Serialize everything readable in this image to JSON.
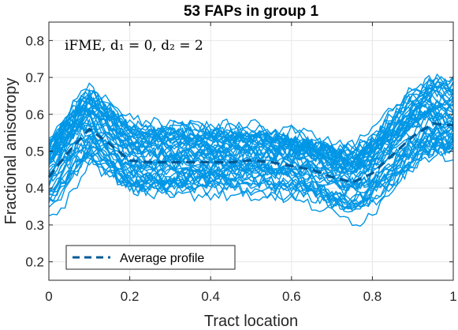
{
  "chart_data": {
    "type": "line",
    "title": "53 FAPs in group 1",
    "xlabel": "Tract location",
    "ylabel": "Fractional anisotropy",
    "xlim": [
      0,
      1
    ],
    "ylim": [
      0.15,
      0.85
    ],
    "xticks": [
      0,
      0.2,
      0.4,
      0.6,
      0.8,
      1
    ],
    "xtick_labels": [
      "0",
      "0.2",
      "0.4",
      "0.6",
      "0.8",
      "1"
    ],
    "yticks": [
      0.2,
      0.3,
      0.4,
      0.5,
      0.6,
      0.7,
      0.8
    ],
    "ytick_labels": [
      "0.2",
      "0.3",
      "0.4",
      "0.5",
      "0.6",
      "0.7",
      "0.8"
    ],
    "grid": true,
    "annotation": "iFME, d₁ = 0, d₂ = 2",
    "legend": {
      "placement": "bottom-left",
      "entries": [
        "Average profile"
      ]
    },
    "n_profiles": 53,
    "profile_color": "#0096e6",
    "average_color": "#005a96",
    "series": [
      {
        "name": "Average profile",
        "style": "dashed",
        "x": [
          0,
          0.05,
          0.1,
          0.15,
          0.2,
          0.25,
          0.3,
          0.35,
          0.4,
          0.45,
          0.5,
          0.55,
          0.6,
          0.65,
          0.7,
          0.75,
          0.8,
          0.85,
          0.9,
          0.95,
          1
        ],
        "y": [
          0.43,
          0.5,
          0.56,
          0.52,
          0.475,
          0.47,
          0.47,
          0.47,
          0.47,
          0.47,
          0.475,
          0.47,
          0.46,
          0.45,
          0.43,
          0.415,
          0.44,
          0.49,
          0.54,
          0.575,
          0.57
        ]
      }
    ]
  }
}
